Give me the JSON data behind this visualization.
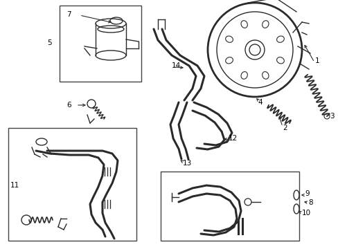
{
  "bg_color": "#ffffff",
  "line_color": "#2a2a2a",
  "label_color": "#000000",
  "fig_width": 4.89,
  "fig_height": 3.6,
  "dpi": 100,
  "xlim": [
    0,
    489
  ],
  "ylim": [
    0,
    360
  ]
}
